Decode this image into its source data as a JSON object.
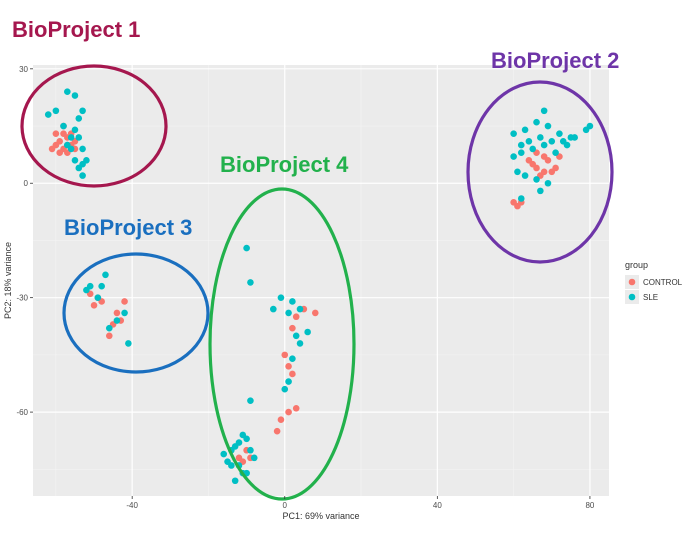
{
  "chart_data": {
    "type": "scatter",
    "xlabel": "PC1: 69% variance",
    "ylabel": "PC2: 18% variance",
    "xlim": [
      -66,
      85
    ],
    "ylim": [
      -82,
      31
    ],
    "x_ticks": [
      -40,
      0,
      40,
      80
    ],
    "y_ticks": [
      30,
      0,
      -30,
      -60
    ],
    "x_tick_labels": [
      "-40",
      "0",
      "40",
      "80"
    ],
    "y_tick_labels": [
      "30",
      "0",
      "-30",
      "-60"
    ],
    "grid": true,
    "legend": {
      "title": "group",
      "position": "right",
      "entries": [
        {
          "label": "CONTROL",
          "color": "#f8766d"
        },
        {
          "label": "SLE",
          "color": "#00bfc4"
        }
      ]
    },
    "series": [
      {
        "name": "CONTROL",
        "color": "#f8766d",
        "points": [
          [
            -60,
            10
          ],
          [
            -59,
            11
          ],
          [
            -58,
            9
          ],
          [
            -57,
            12
          ],
          [
            -56,
            10
          ],
          [
            -58,
            13
          ],
          [
            -57,
            8
          ],
          [
            -55,
            11
          ],
          [
            -59,
            8
          ],
          [
            -60,
            13
          ],
          [
            -56,
            13
          ],
          [
            -58,
            15
          ],
          [
            -55,
            9
          ],
          [
            -57,
            10
          ],
          [
            -61,
            9
          ],
          [
            66,
            4
          ],
          [
            68,
            7
          ],
          [
            65,
            5
          ],
          [
            70,
            3
          ],
          [
            67,
            2
          ],
          [
            69,
            6
          ],
          [
            71,
            4
          ],
          [
            72,
            7
          ],
          [
            66,
            8
          ],
          [
            64,
            6
          ],
          [
            68,
            3
          ],
          [
            62,
            -5
          ],
          [
            61,
            -6
          ],
          [
            60,
            -5
          ],
          [
            -51,
            -29
          ],
          [
            -49,
            -30
          ],
          [
            -48,
            -31
          ],
          [
            -50,
            -32
          ],
          [
            -44,
            -34
          ],
          [
            -43,
            -36
          ],
          [
            -45,
            -37
          ],
          [
            -42,
            -31
          ],
          [
            -46,
            -40
          ],
          [
            3,
            -35
          ],
          [
            2,
            -38
          ],
          [
            5,
            -33
          ],
          [
            8,
            -34
          ],
          [
            0,
            -45
          ],
          [
            1,
            -48
          ],
          [
            2,
            -50
          ],
          [
            3,
            -59
          ],
          [
            1,
            -60
          ],
          [
            -1,
            -62
          ],
          [
            -2,
            -65
          ],
          [
            -10,
            -70
          ],
          [
            -11,
            -73
          ],
          [
            -12,
            -72
          ],
          [
            -9,
            -72
          ]
        ]
      },
      {
        "name": "SLE",
        "color": "#00bfc4",
        "points": [
          [
            -57,
            24
          ],
          [
            -55,
            23
          ],
          [
            -62,
            18
          ],
          [
            -60,
            19
          ],
          [
            -53,
            19
          ],
          [
            -54,
            17
          ],
          [
            -58,
            15
          ],
          [
            -55,
            14
          ],
          [
            -56,
            12
          ],
          [
            -57,
            10
          ],
          [
            -53,
            9
          ],
          [
            -52,
            6
          ],
          [
            -53,
            5
          ],
          [
            -55,
            6
          ],
          [
            -54,
            4
          ],
          [
            -53,
            2
          ],
          [
            -56,
            9
          ],
          [
            -54,
            12
          ],
          [
            68,
            19
          ],
          [
            60,
            13
          ],
          [
            63,
            14
          ],
          [
            66,
            16
          ],
          [
            69,
            15
          ],
          [
            72,
            13
          ],
          [
            76,
            12
          ],
          [
            79,
            14
          ],
          [
            80,
            15
          ],
          [
            75,
            12
          ],
          [
            74,
            10
          ],
          [
            62,
            10
          ],
          [
            64,
            11
          ],
          [
            67,
            12
          ],
          [
            70,
            11
          ],
          [
            73,
            11
          ],
          [
            60,
            7
          ],
          [
            62,
            8
          ],
          [
            65,
            9
          ],
          [
            68,
            10
          ],
          [
            71,
            8
          ],
          [
            61,
            3
          ],
          [
            63,
            2
          ],
          [
            66,
            1
          ],
          [
            69,
            0
          ],
          [
            67,
            -2
          ],
          [
            62,
            -4
          ],
          [
            -47,
            -24
          ],
          [
            -48,
            -27
          ],
          [
            -51,
            -27
          ],
          [
            -52,
            -28
          ],
          [
            -49,
            -30
          ],
          [
            -44,
            -36
          ],
          [
            -46,
            -38
          ],
          [
            -41,
            -42
          ],
          [
            -42,
            -34
          ],
          [
            -10,
            -17
          ],
          [
            -9,
            -26
          ],
          [
            -1,
            -30
          ],
          [
            2,
            -31
          ],
          [
            4,
            -33
          ],
          [
            1,
            -34
          ],
          [
            -3,
            -33
          ],
          [
            6,
            -39
          ],
          [
            3,
            -40
          ],
          [
            4,
            -42
          ],
          [
            2,
            -46
          ],
          [
            1,
            -52
          ],
          [
            0,
            -54
          ],
          [
            -9,
            -57
          ],
          [
            -16,
            -71
          ],
          [
            -14,
            -70
          ],
          [
            -13,
            -69
          ],
          [
            -12,
            -68
          ],
          [
            -11,
            -66
          ],
          [
            -10,
            -67
          ],
          [
            -9,
            -70
          ],
          [
            -8,
            -72
          ],
          [
            -12,
            -74
          ],
          [
            -14,
            -74
          ],
          [
            -11,
            -76
          ],
          [
            -13,
            -78
          ],
          [
            -10,
            -76
          ],
          [
            -15,
            -73
          ]
        ]
      }
    ],
    "annotations": [
      {
        "label": "BioProject 1",
        "color": "#a5174e",
        "ellipse_color": "#a5174e"
      },
      {
        "label": "BioProject 2",
        "color": "#6e35a8",
        "ellipse_color": "#6e35a8"
      },
      {
        "label": "BioProject 3",
        "color": "#1a6fbf",
        "ellipse_color": "#1a6fbf"
      },
      {
        "label": "BioProject 4",
        "color": "#22b14c",
        "ellipse_color": "#22b14c"
      }
    ]
  }
}
